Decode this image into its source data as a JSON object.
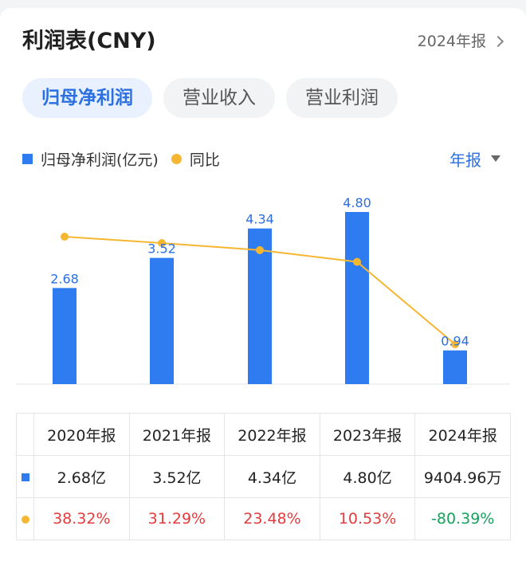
{
  "header": {
    "title": "利润表(CNY)",
    "period_link": "2024年报"
  },
  "tabs": [
    {
      "label": "归母净利润",
      "active": true
    },
    {
      "label": "营业收入",
      "active": false
    },
    {
      "label": "营业利润",
      "active": false
    }
  ],
  "legend": {
    "bar_label": "归母净利润(亿元)",
    "line_label": "同比"
  },
  "period_select": "年报",
  "chart_data": {
    "type": "bar",
    "categories": [
      "2020年报",
      "2021年报",
      "2022年报",
      "2023年报",
      "2024年报"
    ],
    "series": [
      {
        "name": "归母净利润(亿元)",
        "type": "bar",
        "values": [
          2.68,
          3.52,
          4.34,
          4.8,
          0.94
        ],
        "labels": [
          "2.68",
          "3.52",
          "4.34",
          "4.80",
          "0.94"
        ]
      },
      {
        "name": "同比",
        "type": "line",
        "values": [
          38.32,
          31.29,
          23.48,
          10.53,
          -80.39
        ]
      }
    ],
    "colors": {
      "bar": "#2f7cf0",
      "line": "#f5b731"
    }
  },
  "table": {
    "headers": [
      "2020年报",
      "2021年报",
      "2022年报",
      "2023年报",
      "2024年报"
    ],
    "profit": [
      "2.68亿",
      "3.52亿",
      "4.34亿",
      "4.80亿",
      "9404.96万"
    ],
    "yoy": [
      "38.32%",
      "31.29%",
      "23.48%",
      "10.53%",
      "-80.39%"
    ]
  }
}
